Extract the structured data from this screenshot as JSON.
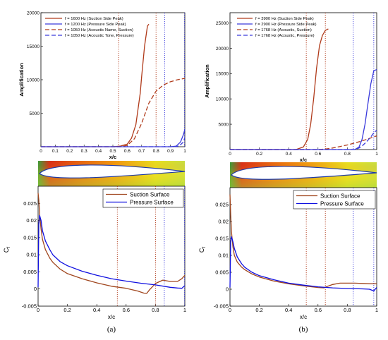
{
  "panels": [
    {
      "label": "(a)",
      "top": {
        "ylabel": "Amplification",
        "xlabel": "x/c",
        "xlim": [
          0,
          1
        ],
        "ylim": [
          0,
          20000
        ],
        "xticks": [
          "0",
          "0.1",
          "0.2",
          "0.3",
          "0.4",
          "0.5",
          "0.6",
          "0.7",
          "0.8",
          "0.9",
          "1"
        ],
        "yticks": [
          "5000",
          "10000",
          "15000",
          "20000"
        ],
        "legend": [
          {
            "label": "f = 1600 Hz (Suction Side Peak)",
            "color": "#b03a1a",
            "dash": "solid"
          },
          {
            "label": "f = 1200 Hz (Pressure Side Peak)",
            "color": "#3a3adc",
            "dash": "solid"
          },
          {
            "label": "f = 1050 Hz (Acoustic Name, Suction)",
            "color": "#b03a1a",
            "dash": "long"
          },
          {
            "label": "f = 1050 Hz (Acoustic Tone, Pressure)",
            "color": "#3a3adc",
            "dash": "long"
          }
        ]
      },
      "bottom": {
        "ylabel": "Cf",
        "xlabel": "x/c",
        "xlim": [
          0,
          1
        ],
        "ylim": [
          -0.005,
          0.03
        ],
        "xticks": [
          "0",
          "0.2",
          "0.4",
          "0.6",
          "0.8",
          "1"
        ],
        "yticks": [
          "-0.005",
          "0",
          "0.005",
          "0.01",
          "0.015",
          "0.02",
          "0.025"
        ],
        "legend": [
          {
            "label": "Suction Surface",
            "color": "#a0461e"
          },
          {
            "label": "Pressure Surface",
            "color": "#1010e0"
          }
        ]
      }
    },
    {
      "label": "(b)",
      "top": {
        "ylabel": "Amplification",
        "xlabel": "x/c",
        "xlim": [
          0,
          1
        ],
        "ylim": [
          0,
          27000
        ],
        "xticks": [
          "0",
          "0.2",
          "0.4",
          "0.6",
          "0.8",
          "1"
        ],
        "yticks": [
          "5000",
          "10000",
          "15000",
          "20000",
          "25000"
        ],
        "legend": [
          {
            "label": "f = 3900 Hz (Suction Side Peak)",
            "color": "#b03a1a",
            "dash": "solid"
          },
          {
            "label": "f = 2900 Hz (Pressure Side Peak)",
            "color": "#3a3adc",
            "dash": "solid"
          },
          {
            "label": "f = 1768 Hz (Acoustic, Suction)",
            "color": "#b03a1a",
            "dash": "long"
          },
          {
            "label": "f = 1768 Hz (Acoustic, Pressure)",
            "color": "#3a3adc",
            "dash": "long"
          }
        ]
      },
      "bottom": {
        "ylabel": "Cf",
        "xlabel": "x/c",
        "xlim": [
          0,
          1
        ],
        "ylim": [
          -0.005,
          0.03
        ],
        "xticks": [
          "0",
          "0.2",
          "0.4",
          "0.6",
          "0.8",
          "1"
        ],
        "yticks": [
          "-0.005",
          "0",
          "0.005",
          "0.01",
          "0.015",
          "0.02",
          "0.025"
        ],
        "legend": [
          {
            "label": "Suction Surface",
            "color": "#a0461e"
          },
          {
            "label": "Pressure Surface",
            "color": "#1010e0"
          }
        ]
      }
    }
  ],
  "chart_data": [
    {
      "type": "line",
      "panel": "(a) top",
      "xlabel": "x/c",
      "ylabel": "Amplification",
      "xlim": [
        0,
        1
      ],
      "ylim": [
        0,
        20000
      ],
      "series": [
        {
          "name": "f = 1600 Hz (Suction Side Peak)",
          "color": "#b03a1a",
          "dash": "solid",
          "x": [
            0,
            0.5,
            0.55,
            0.6,
            0.63,
            0.66,
            0.69,
            0.7,
            0.72,
            0.74,
            0.75
          ],
          "y": [
            0,
            0,
            80,
            400,
            1300,
            3300,
            8000,
            10500,
            15000,
            18000,
            18300
          ]
        },
        {
          "name": "f = 1200 Hz (Pressure Side Peak)",
          "color": "#3a3adc",
          "dash": "solid",
          "x": [
            0,
            0.9,
            0.94,
            0.97,
            0.99,
            1.0
          ],
          "y": [
            0,
            0,
            100,
            700,
            1800,
            2600
          ]
        },
        {
          "name": "f = 1050 Hz (Acoustic Name, Suction)",
          "color": "#b03a1a",
          "dash": "long",
          "x": [
            0,
            0.55,
            0.6,
            0.65,
            0.7,
            0.75,
            0.8,
            0.85,
            0.9,
            0.95,
            1.0
          ],
          "y": [
            0,
            0,
            200,
            1200,
            3500,
            6500,
            8300,
            9200,
            9700,
            10000,
            10200
          ]
        },
        {
          "name": "f = 1050 Hz (Acoustic Tone, Pressure)",
          "color": "#3a3adc",
          "dash": "long",
          "x": [
            0,
            0.92,
            0.96,
            0.99,
            1.0
          ],
          "y": [
            0,
            0,
            100,
            700,
            1400
          ]
        }
      ],
      "vlines": [
        {
          "x": 0.54,
          "color": "#b03a1a"
        },
        {
          "x": 0.8,
          "color": "#b03a1a"
        },
        {
          "x": 0.86,
          "color": "#3a3adc"
        },
        {
          "x": 1.0,
          "color": "#3a3adc"
        }
      ]
    },
    {
      "type": "line",
      "panel": "(a) bottom",
      "xlabel": "x/c",
      "ylabel": "Cf",
      "xlim": [
        0,
        1
      ],
      "ylim": [
        -0.005,
        0.03
      ],
      "series": [
        {
          "name": "Suction Surface",
          "color": "#a0461e",
          "x": [
            0,
            0.005,
            0.01,
            0.02,
            0.03,
            0.05,
            0.08,
            0.1,
            0.15,
            0.2,
            0.3,
            0.4,
            0.5,
            0.6,
            0.68,
            0.72,
            0.74,
            0.76,
            0.8,
            0.85,
            0.9,
            0.95,
            0.98,
            1.0
          ],
          "y": [
            0.028,
            0.026,
            0.022,
            0.0175,
            0.0145,
            0.0115,
            0.009,
            0.0078,
            0.0058,
            0.0045,
            0.003,
            0.0018,
            0.0008,
            0.0002,
            -0.0006,
            -0.0012,
            -0.0013,
            -0.0002,
            0.0016,
            0.0026,
            0.0022,
            0.0022,
            0.003,
            0.004
          ]
        },
        {
          "name": "Pressure Surface",
          "color": "#1010e0",
          "x": [
            0,
            0.005,
            0.01,
            0.02,
            0.03,
            0.05,
            0.08,
            0.1,
            0.15,
            0.2,
            0.3,
            0.4,
            0.5,
            0.6,
            0.7,
            0.8,
            0.9,
            0.95,
            0.98,
            1.0
          ],
          "y": [
            0.0005,
            0.019,
            0.0215,
            0.02,
            0.017,
            0.014,
            0.0115,
            0.01,
            0.008,
            0.0068,
            0.0052,
            0.004,
            0.003,
            0.0023,
            0.0017,
            0.0012,
            0.0005,
            0.0003,
            0.0002,
            0.001
          ]
        }
      ],
      "vlines": [
        {
          "x": 0.54,
          "color": "#b03a1a"
        },
        {
          "x": 0.8,
          "color": "#b03a1a"
        },
        {
          "x": 0.86,
          "color": "#3a3adc"
        },
        {
          "x": 1.0,
          "color": "#3a3adc"
        }
      ]
    },
    {
      "type": "line",
      "panel": "(b) top",
      "xlabel": "x/c",
      "ylabel": "Amplification",
      "xlim": [
        0,
        1
      ],
      "ylim": [
        0,
        27000
      ],
      "series": [
        {
          "name": "f = 3900 Hz (Suction Side Peak)",
          "color": "#b03a1a",
          "dash": "solid",
          "x": [
            0,
            0.45,
            0.5,
            0.53,
            0.55,
            0.57,
            0.59,
            0.61,
            0.63,
            0.65,
            0.67
          ],
          "y": [
            0,
            0,
            500,
            2000,
            5000,
            10000,
            16000,
            20500,
            22500,
            23500,
            23800
          ]
        },
        {
          "name": "f = 2900 Hz (Pressure Side Peak)",
          "color": "#3a3adc",
          "dash": "solid",
          "x": [
            0,
            0.85,
            0.88,
            0.9,
            0.92,
            0.94,
            0.96,
            0.98,
            1.0
          ],
          "y": [
            0,
            0,
            500,
            2000,
            5000,
            9000,
            13000,
            15500,
            15800
          ]
        },
        {
          "name": "f = 1768 Hz (Acoustic, Suction)",
          "color": "#b03a1a",
          "dash": "long",
          "x": [
            0,
            0.6,
            0.65,
            0.7,
            0.75,
            0.8,
            0.85,
            0.9,
            0.95,
            1.0
          ],
          "y": [
            0,
            0,
            100,
            300,
            600,
            900,
            1300,
            1700,
            2200,
            2700
          ]
        },
        {
          "name": "f = 1768 Hz (Acoustic, Pressure)",
          "color": "#3a3adc",
          "dash": "long",
          "x": [
            0,
            0.85,
            0.88,
            0.9,
            0.93,
            0.96,
            0.98,
            1.0
          ],
          "y": [
            0,
            0,
            300,
            700,
            1500,
            2500,
            3300,
            3800
          ]
        }
      ],
      "vlines": [
        {
          "x": 0.52,
          "color": "#b03a1a"
        },
        {
          "x": 0.65,
          "color": "#b03a1a"
        },
        {
          "x": 0.84,
          "color": "#3a3adc"
        },
        {
          "x": 0.98,
          "color": "#3a3adc"
        }
      ]
    },
    {
      "type": "line",
      "panel": "(b) bottom",
      "xlabel": "x/c",
      "ylabel": "Cf",
      "xlim": [
        0,
        1
      ],
      "ylim": [
        -0.005,
        0.03
      ],
      "series": [
        {
          "name": "Suction Surface",
          "color": "#a0461e",
          "x": [
            0,
            0.005,
            0.01,
            0.02,
            0.03,
            0.05,
            0.08,
            0.1,
            0.15,
            0.2,
            0.3,
            0.4,
            0.5,
            0.6,
            0.64,
            0.66,
            0.7,
            0.75,
            0.8,
            0.85,
            0.9,
            0.95,
            1.0
          ],
          "y": [
            0.028,
            0.022,
            0.017,
            0.0125,
            0.01,
            0.008,
            0.0065,
            0.0058,
            0.0045,
            0.0036,
            0.0024,
            0.0016,
            0.001,
            0.0005,
            0.0004,
            0.0008,
            0.0014,
            0.0018,
            0.0018,
            0.0018,
            0.0017,
            0.0016,
            0.0016
          ]
        },
        {
          "name": "Pressure Surface",
          "color": "#1010e0",
          "x": [
            0,
            0.005,
            0.01,
            0.02,
            0.03,
            0.05,
            0.08,
            0.1,
            0.15,
            0.2,
            0.3,
            0.4,
            0.5,
            0.6,
            0.7,
            0.8,
            0.9,
            0.95,
            0.98,
            1.0
          ],
          "y": [
            0.0005,
            0.014,
            0.0155,
            0.014,
            0.012,
            0.0095,
            0.0075,
            0.0065,
            0.005,
            0.004,
            0.0028,
            0.0018,
            0.0012,
            0.0007,
            0.0004,
            0.0002,
            0.0001,
            0.0,
            -0.0005,
            0.0005
          ]
        }
      ],
      "vlines": [
        {
          "x": 0.52,
          "color": "#b03a1a"
        },
        {
          "x": 0.65,
          "color": "#b03a1a"
        },
        {
          "x": 0.84,
          "color": "#3a3adc"
        },
        {
          "x": 0.98,
          "color": "#3a3adc"
        }
      ]
    }
  ]
}
